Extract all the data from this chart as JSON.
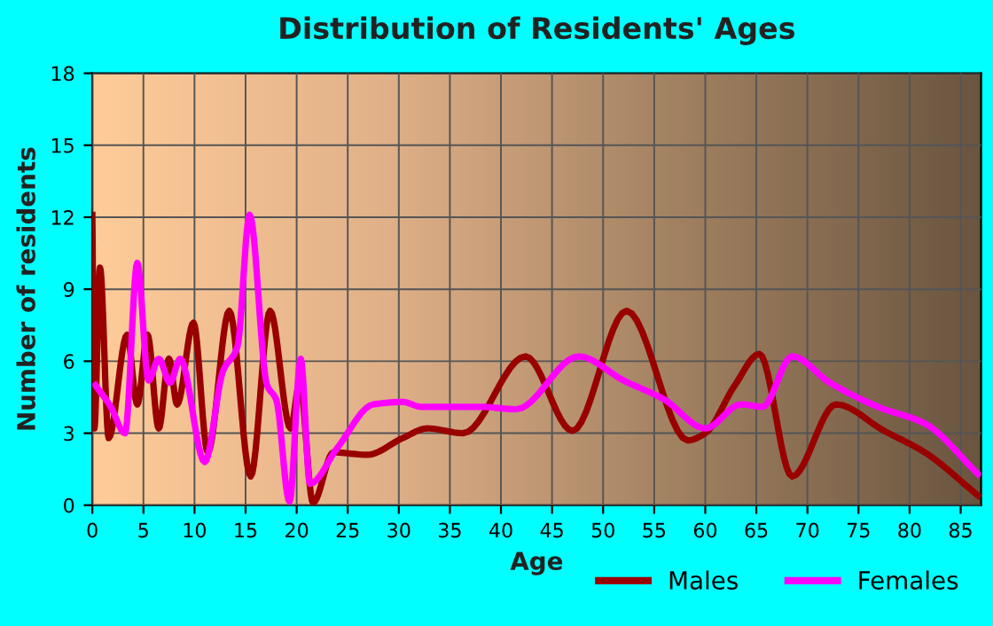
{
  "chart_data": {
    "type": "line",
    "title": "Distribution of Residents' Ages",
    "xlabel": "Age",
    "ylabel": "Number of residents",
    "xlim": [
      0,
      87
    ],
    "xticks": [
      0,
      5,
      10,
      15,
      20,
      25,
      30,
      35,
      40,
      45,
      50,
      55,
      60,
      65,
      70,
      75,
      80,
      85
    ],
    "ylim": [
      0,
      18
    ],
    "yticks": [
      0,
      3,
      6,
      9,
      12,
      15,
      18
    ],
    "grid": true,
    "legend": "bottom right",
    "series": [
      {
        "name": "Males",
        "color": "#990000",
        "x": [
          0,
          0.2,
          0.75,
          1.6,
          3.4,
          4.4,
          5.4,
          6.5,
          7.5,
          8.3,
          9.9,
          11.3,
          13.4,
          15.5,
          17.4,
          19.4,
          20.3,
          21.6,
          23.6,
          26.9,
          30.4,
          32.8,
          36.3,
          42.4,
          47.0,
          52.3,
          58.3,
          60.0,
          62.9,
          65.3,
          68.5,
          72.8,
          77.5,
          81.5,
          86.7
        ],
        "values": [
          12.1,
          3.2,
          9.9,
          2.8,
          7.1,
          4.2,
          7.1,
          3.2,
          6.1,
          4.2,
          7.6,
          2.2,
          8.1,
          1.2,
          8.1,
          3.2,
          5.1,
          0.1,
          2.2,
          2.1,
          2.8,
          3.2,
          3.0,
          6.2,
          3.1,
          8.1,
          2.7,
          3.0,
          5.0,
          6.3,
          1.2,
          4.2,
          3.1,
          2.2,
          0.4
        ]
      },
      {
        "name": "Females",
        "color": "#ff00ff",
        "x": [
          0.3,
          1.8,
          3.2,
          4.4,
          5.5,
          6.5,
          7.6,
          8.6,
          11.0,
          12.8,
          14.2,
          15.4,
          17.1,
          18.0,
          19.3,
          20.4,
          21.3,
          24.0,
          27.5,
          30.4,
          32.2,
          38.0,
          41.5,
          47.6,
          52.0,
          56.0,
          60.0,
          63.5,
          65.6,
          68.5,
          72.2,
          76.9,
          81.5,
          86.7
        ],
        "values": [
          5.0,
          4.1,
          3.0,
          10.1,
          5.2,
          6.1,
          5.1,
          6.1,
          1.8,
          5.6,
          6.6,
          12.1,
          5.0,
          4.4,
          0.15,
          6.1,
          0.9,
          2.4,
          4.2,
          4.3,
          4.1,
          4.1,
          4.0,
          6.2,
          5.2,
          4.4,
          3.2,
          4.2,
          4.1,
          6.2,
          5.1,
          4.1,
          3.4,
          1.3
        ]
      }
    ]
  }
}
